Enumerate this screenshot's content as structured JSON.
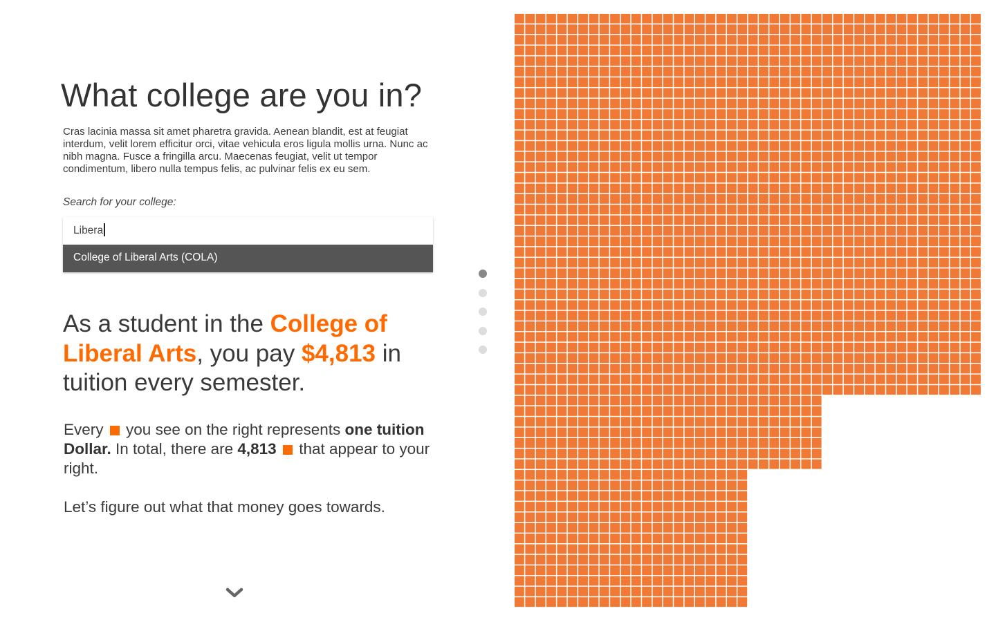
{
  "title": "What college are you in?",
  "intro": "Cras lacinia massa sit amet pharetra gravida. Aenean blandit, est at feugiat interdum, velit lorem efficitur orci, vitae vehicula eros ligula mollis urna. Nunc ac nibh magna. Fusce a fringilla arcu. Maecenas feugiat, velit ut tempor condimentum, libero nulla tempus felis, ac pulvinar felis ex eu sem.",
  "search": {
    "label": "Search for your college:",
    "value": "Libera",
    "suggestion": "College of Liberal Arts (COLA)"
  },
  "headline": {
    "prefix": "As a student in the ",
    "college": "College of Liberal Arts",
    "middle": ", you pay ",
    "amount": "$4,813",
    "suffix": " in tuition every semester."
  },
  "explain": {
    "part1": "Every",
    "part2": "you see on the right represents",
    "bold1": "one tuition Dollar.",
    "part3": " In total, there are ",
    "bold2": "4,813",
    "part4": "that appear to your right."
  },
  "closing": "Let’s figure out what that money goes towards.",
  "icons": {
    "scroll_down": "chevron-down-icon",
    "unit_square": "square-icon"
  },
  "pagination": {
    "total": 5,
    "active_index": 0
  },
  "colors": {
    "accent": "#ff6a00",
    "grid_cell": "#f07a35",
    "suggestion_bg": "#555555",
    "dot_active": "#888888",
    "dot_inactive": "#dddddd"
  },
  "grid": {
    "total_squares": 4813,
    "squares_per_row": 44
  }
}
